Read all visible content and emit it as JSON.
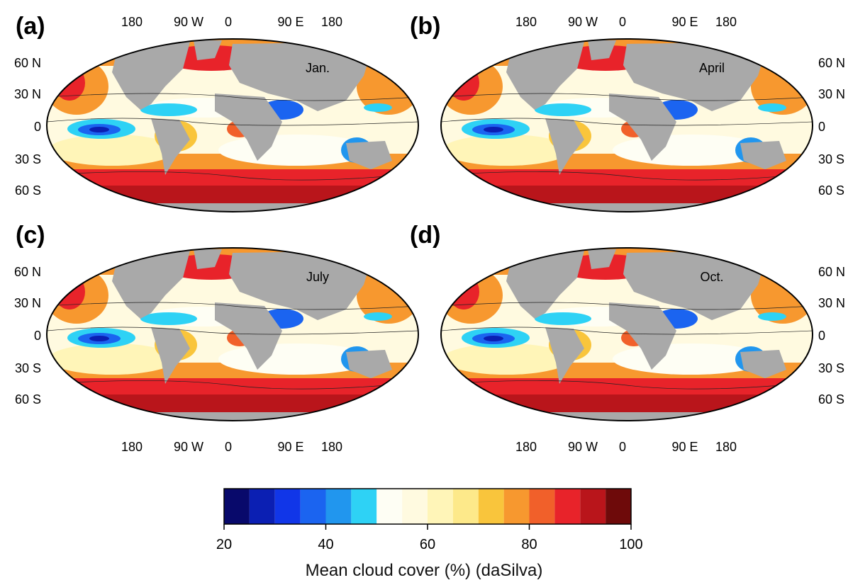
{
  "panels": [
    {
      "label": "(a)",
      "month": "Jan.",
      "lon_ticks_position": "top"
    },
    {
      "label": "(b)",
      "month": "April",
      "lon_ticks_position": "top"
    },
    {
      "label": "(c)",
      "month": "July",
      "lon_ticks_position": "bottom"
    },
    {
      "label": "(d)",
      "month": "Oct.",
      "lon_ticks_position": "bottom"
    }
  ],
  "lon_labels": [
    "180",
    "90 W",
    "0",
    "90 E",
    "180"
  ],
  "lat_labels": [
    "60 N",
    "30 N",
    "0",
    "30 S",
    "60 S"
  ],
  "colorbar": {
    "title": "Mean cloud cover (%) (daSilva)",
    "tick_labels": [
      "20",
      "40",
      "60",
      "80",
      "100"
    ],
    "min": 20,
    "max": 100,
    "colors": [
      "#08096b",
      "#0b1fb3",
      "#1136e8",
      "#1b64f0",
      "#2196ee",
      "#2ed2f5",
      "#fefef4",
      "#fffae0",
      "#fff5b8",
      "#fde98a",
      "#f9c53c",
      "#f7982f",
      "#f1602a",
      "#e8232a",
      "#b9151b",
      "#6e0a0a"
    ]
  },
  "land_color": "#a9a9a9"
}
